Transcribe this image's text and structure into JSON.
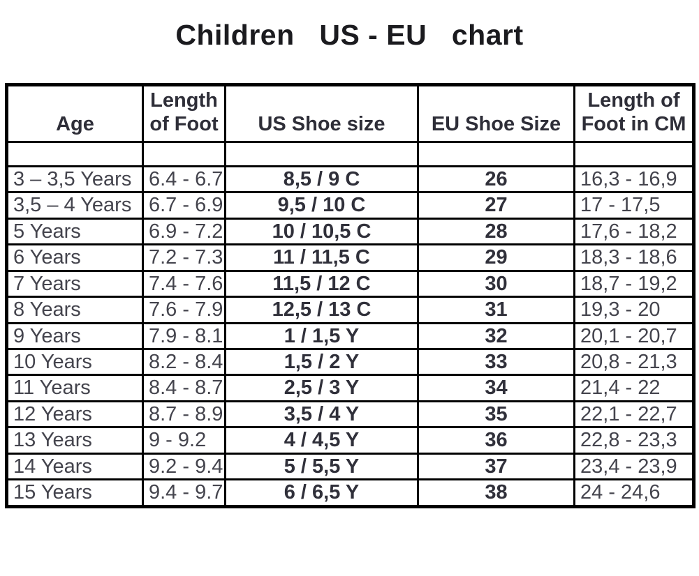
{
  "page_title": "Children   US - EU   chart",
  "chart_data": {
    "type": "table",
    "title": "Children US - EU chart",
    "columns": [
      "Age",
      "Length of Foot",
      "US Shoe size",
      "EU Shoe Size",
      "Length of Foot in CM"
    ],
    "rows": [
      [
        "3 – 3,5 Years",
        "6.4 - 6.7",
        "8,5 / 9 C",
        "26",
        "16,3 - 16,9"
      ],
      [
        "3,5 – 4 Years",
        "6.7 - 6.9",
        "9,5 / 10 C",
        "27",
        "17 - 17,5"
      ],
      [
        "5 Years",
        "6.9 - 7.2",
        "10 / 10,5 C",
        "28",
        "17,6 - 18,2"
      ],
      [
        "6 Years",
        "7.2 - 7.3",
        "11 / 11,5 C",
        "29",
        "18,3 - 18,6"
      ],
      [
        "7 Years",
        "7.4 - 7.6",
        "11,5 / 12 C",
        "30",
        "18,7 - 19,2"
      ],
      [
        "8 Years",
        "7.6 - 7.9",
        "12,5 / 13 C",
        "31",
        "19,3 - 20"
      ],
      [
        "9 Years",
        "7.9 - 8.1",
        "1 / 1,5 Y",
        "32",
        "20,1 - 20,7"
      ],
      [
        "10 Years",
        "8.2 - 8.4",
        "1,5 / 2 Y",
        "33",
        "20,8 - 21,3"
      ],
      [
        "11 Years",
        "8.4 - 8.7",
        "2,5 / 3 Y",
        "34",
        "21,4 - 22"
      ],
      [
        "12 Years",
        "8.7 - 8.9",
        "3,5 / 4 Y",
        "35",
        "22,1 - 22,7"
      ],
      [
        "13 Years",
        "9 - 9.2",
        "4 / 4,5 Y",
        "36",
        "22,8 - 23,3"
      ],
      [
        "14 Years",
        "9.2 - 9.4",
        "5 / 5,5 Y",
        "37",
        "23,4 - 23,9"
      ],
      [
        "15 Years",
        "9.4 - 9.7",
        "6 / 6,5 Y",
        "38",
        "24 - 24,6"
      ]
    ],
    "layout": {
      "legend": "none",
      "grid": "full-borders",
      "us_eu_columns_bold_centered": true,
      "empty_spacer_row_below_header": true
    }
  },
  "colors": {
    "background": "#ffffff",
    "border": "#000000",
    "title_text": "#1b1b1f",
    "header_text": "#2e2e38",
    "data_text": "#44444d"
  }
}
